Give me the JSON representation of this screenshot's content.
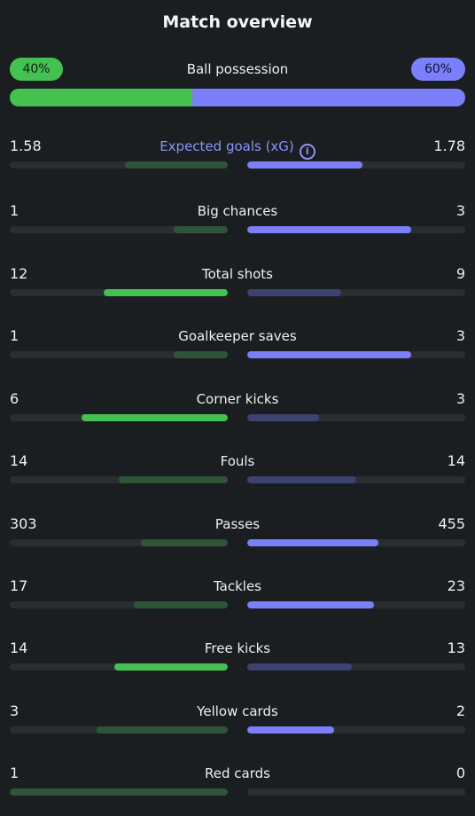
{
  "title": "Match overview",
  "possession": {
    "label": "Ball possession",
    "home_text": "40%",
    "away_text": "60%",
    "home": 40,
    "away": 60
  },
  "colors": {
    "home_win": "#45c152",
    "home_lose": "#2f5438",
    "away_win": "#7b80fa",
    "away_lose": "#3d4270",
    "track": "#2a2e31",
    "background": "#1a1e21"
  },
  "stats": [
    {
      "label": "Expected goals (xG)",
      "home": "1.58",
      "away": "1.78",
      "home_fill": 0.47,
      "away_fill": 0.53,
      "winner": "away",
      "info_icon": "info-icon",
      "accent": true
    },
    {
      "label": "Big chances",
      "home": "1",
      "away": "3",
      "home_fill": 0.25,
      "away_fill": 0.75,
      "winner": "away"
    },
    {
      "label": "Total shots",
      "home": "12",
      "away": "9",
      "home_fill": 0.57,
      "away_fill": 0.43,
      "winner": "home"
    },
    {
      "label": "Goalkeeper saves",
      "home": "1",
      "away": "3",
      "home_fill": 0.25,
      "away_fill": 0.75,
      "winner": "away"
    },
    {
      "label": "Corner kicks",
      "home": "6",
      "away": "3",
      "home_fill": 0.67,
      "away_fill": 0.33,
      "winner": "home"
    },
    {
      "label": "Fouls",
      "home": "14",
      "away": "14",
      "home_fill": 0.5,
      "away_fill": 0.5,
      "winner": "none"
    },
    {
      "label": "Passes",
      "home": "303",
      "away": "455",
      "home_fill": 0.4,
      "away_fill": 0.6,
      "winner": "away"
    },
    {
      "label": "Tackles",
      "home": "17",
      "away": "23",
      "home_fill": 0.43,
      "away_fill": 0.58,
      "winner": "away"
    },
    {
      "label": "Free kicks",
      "home": "14",
      "away": "13",
      "home_fill": 0.52,
      "away_fill": 0.48,
      "winner": "home"
    },
    {
      "label": "Yellow cards",
      "home": "3",
      "away": "2",
      "home_fill": 0.6,
      "away_fill": 0.4,
      "winner": "away"
    },
    {
      "label": "Red cards",
      "home": "1",
      "away": "0",
      "home_fill": 1.0,
      "away_fill": 0.0,
      "winner": "none"
    }
  ]
}
